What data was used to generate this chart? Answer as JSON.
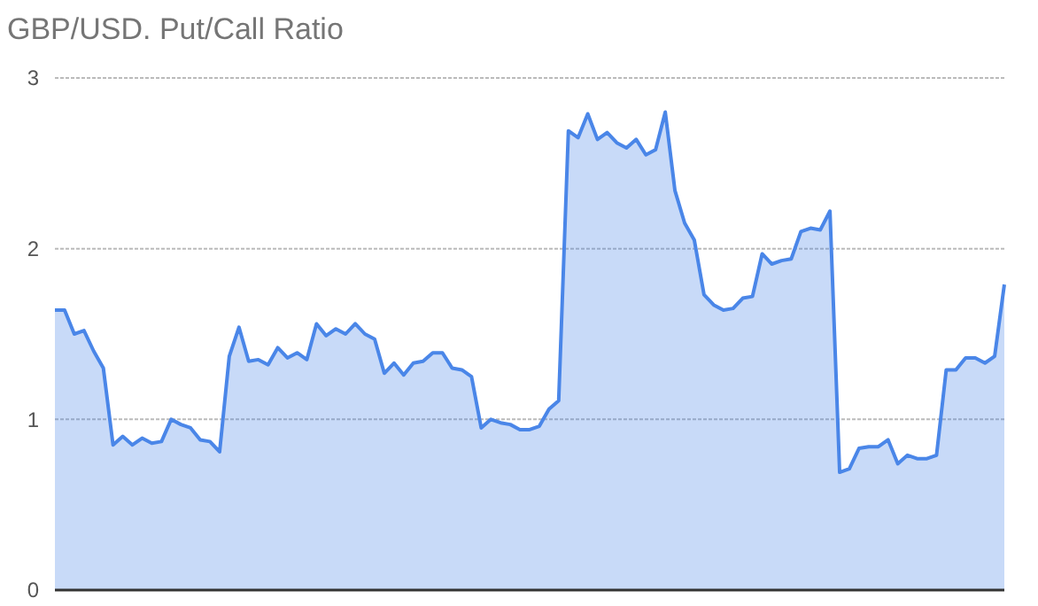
{
  "chart_data": {
    "type": "area",
    "title": "GBP/USD. Put/Call Ratio",
    "categories": [
      null,
      null,
      null,
      null,
      null,
      null,
      null,
      null,
      null,
      null,
      null,
      null,
      null,
      null,
      null,
      null,
      null,
      null,
      null,
      null,
      null,
      null,
      null,
      null,
      null,
      null,
      null,
      null,
      null,
      null,
      null,
      null,
      null,
      null,
      null,
      null,
      null,
      null,
      null,
      null,
      null,
      null,
      null,
      null,
      null,
      null,
      null,
      null,
      null,
      null,
      null,
      null,
      null,
      null,
      null,
      null,
      null,
      null,
      null,
      null,
      null,
      null,
      null,
      null,
      null,
      null,
      null,
      null,
      null,
      null,
      null,
      null,
      null,
      null,
      null,
      null,
      null,
      null,
      null,
      null,
      null,
      null,
      null,
      null,
      null,
      null,
      null,
      null,
      null,
      null,
      null,
      null,
      null,
      null,
      null,
      null,
      null,
      null,
      null
    ],
    "series": [
      {
        "color": "#4a86e8",
        "values": [
          1.64,
          1.64,
          1.5,
          1.52,
          1.4,
          1.3,
          0.85,
          0.9,
          0.85,
          0.89,
          0.86,
          0.87,
          1.0,
          0.97,
          0.95,
          0.88,
          0.87,
          0.81,
          1.37,
          1.54,
          1.34,
          1.35,
          1.32,
          1.42,
          1.36,
          1.39,
          1.35,
          1.56,
          1.49,
          1.53,
          1.5,
          1.56,
          1.5,
          1.47,
          1.27,
          1.33,
          1.26,
          1.33,
          1.34,
          1.39,
          1.39,
          1.3,
          1.29,
          1.25,
          0.95,
          1.0,
          0.98,
          0.97,
          0.94,
          0.94,
          0.96,
          1.06,
          1.11,
          2.69,
          2.65,
          2.79,
          2.64,
          2.68,
          2.62,
          2.59,
          2.64,
          2.55,
          2.58,
          2.8,
          2.34,
          2.15,
          2.05,
          1.73,
          1.67,
          1.64,
          1.65,
          1.71,
          1.72,
          1.97,
          1.91,
          1.93,
          1.94,
          2.1,
          2.12,
          2.11,
          2.22,
          0.69,
          0.71,
          0.83,
          0.84,
          0.84,
          0.88,
          0.74,
          0.79,
          0.77,
          0.77,
          0.79,
          1.29,
          1.29,
          1.36,
          1.36,
          1.33,
          1.37,
          1.79
        ]
      }
    ],
    "ylim": [
      0,
      3
    ],
    "yticks": [
      0,
      1,
      2,
      3
    ],
    "grid": "y"
  }
}
